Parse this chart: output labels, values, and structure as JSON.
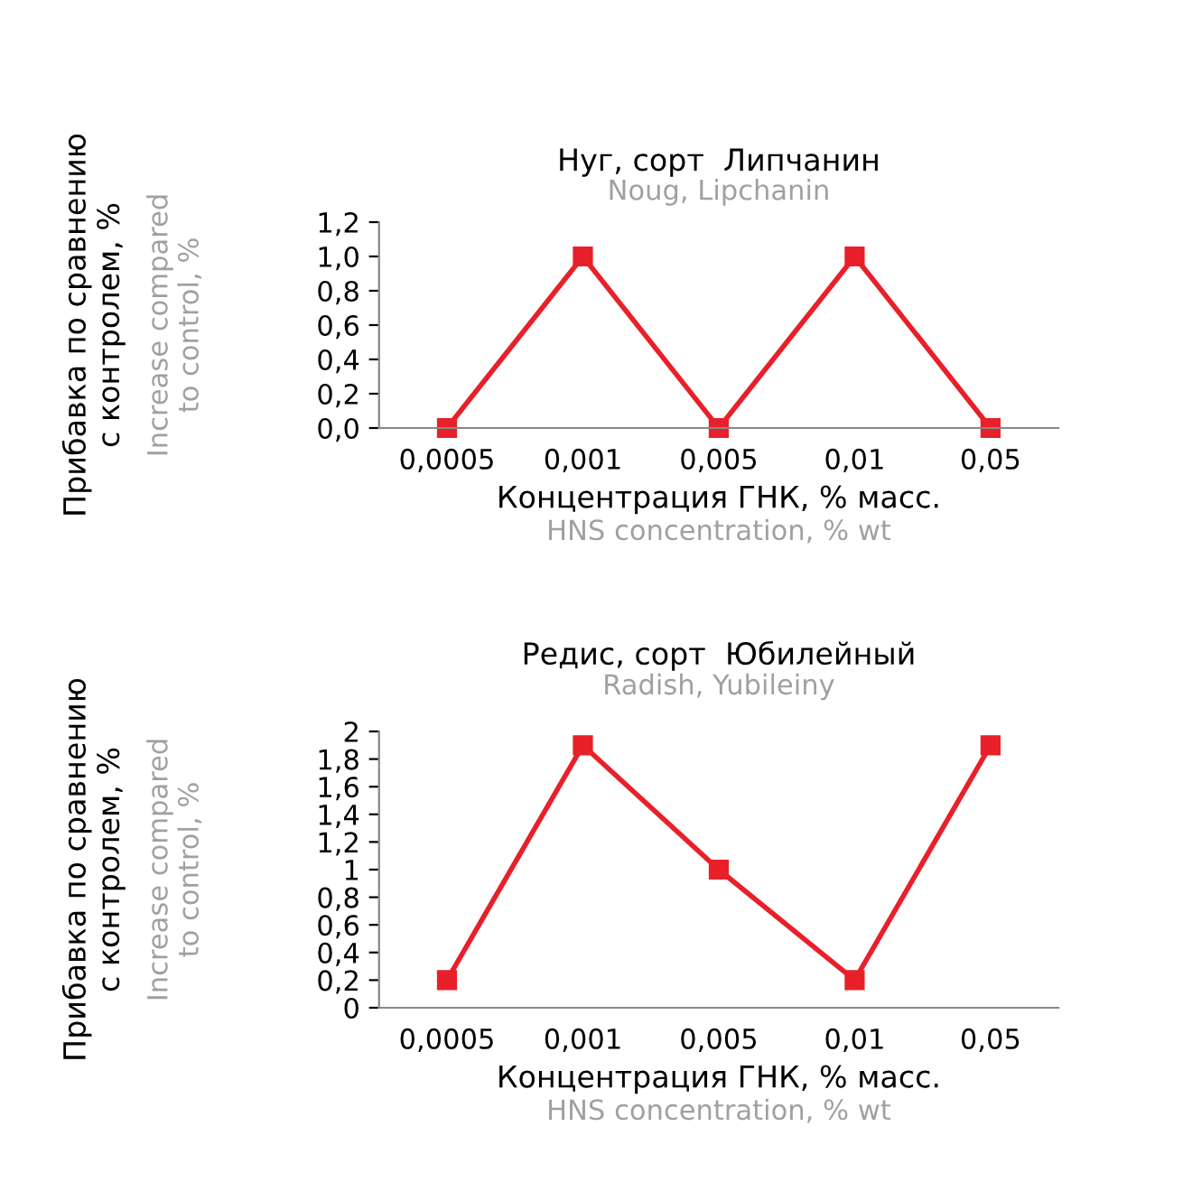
{
  "chart_data": [
    {
      "type": "line",
      "title": "Нуг, сорт  Липчанин",
      "subtitle": "Noug, Lipchanin",
      "xlabel": "Концентрация ГНК, % масс.",
      "ylabel": "Прибавка по сравнению\nс контролем, %",
      "annotations": [
        "Increase compared\nto control, %",
        "HNS concentration, % wt"
      ],
      "categories": [
        "0,0005",
        "0,001",
        "0,005",
        "0,01",
        "0,05"
      ],
      "series": [
        {
          "color": "#e8202a",
          "values": [
            0,
            1.0,
            0,
            1.0,
            0
          ]
        }
      ],
      "ylim": [
        0,
        1.2
      ],
      "yticks": [
        {
          "value": 0,
          "label": "0,0"
        },
        {
          "value": 0.2,
          "label": "0,2"
        },
        {
          "value": 0.4,
          "label": "0,4"
        },
        {
          "value": 0.6,
          "label": "0,6"
        },
        {
          "value": 0.8,
          "label": "0,8"
        },
        {
          "value": 1.0,
          "label": "1,0"
        },
        {
          "value": 1.2,
          "label": "1,2"
        }
      ],
      "grid": false,
      "legend": false,
      "marker": "square",
      "line_style": "solid"
    },
    {
      "type": "line",
      "title": "Редис, сорт  Юбилейный",
      "subtitle": "Radish, Yubileiny",
      "xlabel": "Концентрация ГНК, % масс.",
      "ylabel": "Прибавка по сравнению\nс контролем, %",
      "annotations": [
        "Increase compared\nto control, %",
        "HNS concentration, % wt"
      ],
      "categories": [
        "0,0005",
        "0,001",
        "0,005",
        "0,01",
        "0,05"
      ],
      "series": [
        {
          "color": "#e8202a",
          "values": [
            0.2,
            1.9,
            1.0,
            0.2,
            1.9
          ]
        }
      ],
      "ylim": [
        0,
        2
      ],
      "yticks": [
        0,
        {
          "value": 0.2,
          "label": "0,2"
        },
        {
          "value": 0.4,
          "label": "0,4"
        },
        {
          "value": 0.6,
          "label": "0,6"
        },
        {
          "value": 0.8,
          "label": "0,8"
        },
        1,
        {
          "value": 1.2,
          "label": "1,2"
        },
        {
          "value": 1.4,
          "label": "1,4"
        },
        {
          "value": 1.6,
          "label": "1,6"
        },
        {
          "value": 1.8,
          "label": "1,8"
        },
        2
      ],
      "grid": false,
      "legend": false,
      "marker": "square",
      "line_style": "solid"
    }
  ]
}
